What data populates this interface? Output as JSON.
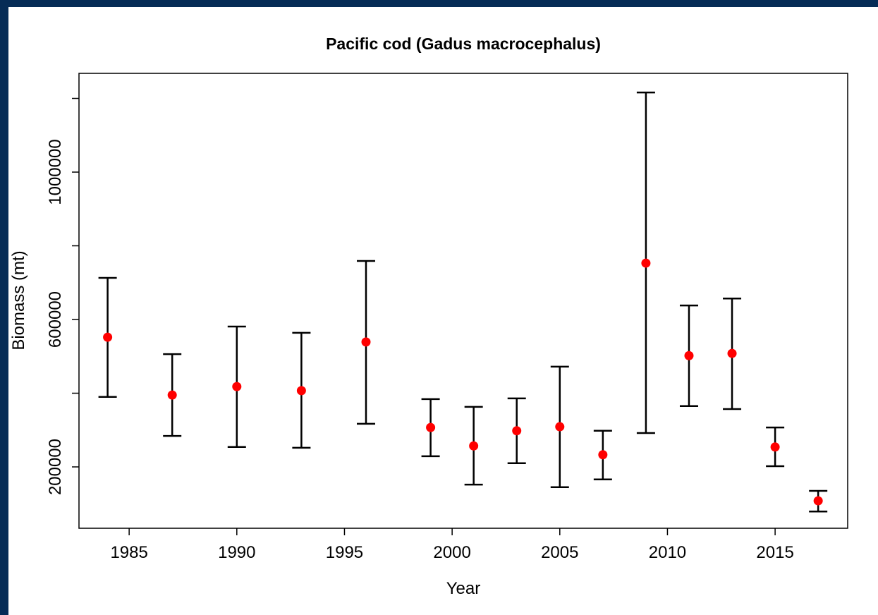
{
  "chart_data": {
    "type": "errorbar",
    "title": "Pacific cod (Gadus macrocephalus)",
    "xlabel": "Year",
    "ylabel": "Biomass (mt)",
    "x": [
      1984,
      1987,
      1990,
      1993,
      1996,
      1999,
      2001,
      2003,
      2005,
      2007,
      2009,
      2011,
      2013,
      2015,
      2017
    ],
    "values": [
      552000,
      395000,
      418000,
      407000,
      539000,
      307000,
      257000,
      298000,
      309000,
      233000,
      753000,
      502000,
      508000,
      254000,
      108000
    ],
    "lower": [
      390000,
      284000,
      254000,
      252000,
      317000,
      229000,
      152000,
      210000,
      145000,
      166000,
      292000,
      365000,
      357000,
      202000,
      79000
    ],
    "upper": [
      713000,
      506000,
      581000,
      564000,
      759000,
      384000,
      363000,
      386000,
      472000,
      298000,
      1216000,
      638000,
      657000,
      307000,
      135000
    ],
    "color": "#ff0000",
    "bar_color": "#000000",
    "xlim": [
      1982.67,
      2018.37
    ],
    "xticks": [
      1985,
      1990,
      1995,
      2000,
      2005,
      2010,
      2015
    ],
    "ylim": [
      33500,
      1268000
    ],
    "yticks": [
      200000,
      {
        "value": 400000,
        "label": null
      },
      600000,
      {
        "value": 800000,
        "label": null
      },
      1000000,
      {
        "value": 1200000,
        "label": null
      }
    ]
  }
}
